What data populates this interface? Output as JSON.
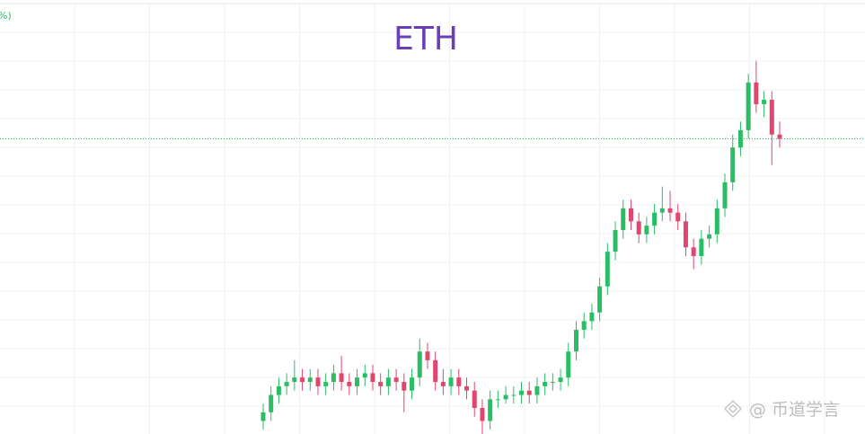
{
  "chart_data": {
    "type": "candlestick",
    "title": "ETH",
    "legend_fragment": "%)",
    "watermark": "@ 币道学言",
    "up_color": "#2bbd66",
    "down_color": "#e0466e",
    "title_color": "#6a3fb5",
    "ylim": [
      0,
      100
    ],
    "open": [
      3,
      5,
      9,
      11,
      12,
      13,
      12,
      13,
      11,
      12,
      14,
      12,
      11,
      13,
      14,
      12,
      11,
      13,
      12,
      10,
      13,
      19,
      17,
      12,
      11,
      13,
      11,
      10,
      6,
      3,
      8,
      8,
      9,
      9,
      10,
      9,
      11,
      12,
      12,
      13,
      19,
      24,
      26,
      28,
      34,
      42,
      47,
      52,
      49,
      46,
      48,
      51,
      52,
      51,
      49,
      43,
      41,
      45,
      46,
      52,
      58,
      66,
      70,
      81,
      76,
      77,
      69
    ],
    "high": [
      7,
      11,
      13,
      14,
      17,
      15,
      15,
      15,
      14,
      16,
      18,
      14,
      15,
      16,
      16,
      14,
      15,
      15,
      14,
      15,
      22,
      21,
      19,
      15,
      15,
      15,
      13,
      12,
      8,
      10,
      10,
      11,
      11,
      12,
      12,
      13,
      14,
      14,
      15,
      21,
      26,
      28,
      30,
      36,
      44,
      49,
      54,
      54,
      51,
      50,
      53,
      57,
      56,
      53,
      51,
      45,
      47,
      48,
      54,
      60,
      69,
      72,
      83,
      86,
      79,
      79,
      72
    ],
    "low": [
      1,
      3,
      7,
      9,
      10,
      10,
      10,
      9,
      9,
      10,
      10,
      9,
      9,
      11,
      10,
      9,
      9,
      10,
      5,
      8,
      11,
      15,
      10,
      9,
      9,
      9,
      8,
      4,
      0,
      1,
      6,
      7,
      7,
      7,
      7,
      7,
      9,
      10,
      10,
      11,
      17,
      22,
      24,
      26,
      32,
      40,
      45,
      47,
      44,
      44,
      46,
      49,
      49,
      47,
      41,
      38,
      39,
      43,
      44,
      50,
      56,
      64,
      68,
      74,
      73,
      62,
      66
    ],
    "close": [
      5,
      9,
      11,
      12,
      13,
      12,
      13,
      11,
      12,
      14,
      12,
      11,
      13,
      14,
      12,
      11,
      13,
      12,
      10,
      13,
      19,
      17,
      12,
      11,
      13,
      11,
      10,
      6,
      3,
      8,
      8,
      9,
      9,
      10,
      9,
      11,
      12,
      12,
      13,
      19,
      24,
      26,
      28,
      34,
      42,
      47,
      52,
      49,
      46,
      48,
      51,
      52,
      51,
      49,
      43,
      41,
      45,
      46,
      52,
      58,
      66,
      70,
      81,
      76,
      77,
      69,
      68
    ]
  }
}
